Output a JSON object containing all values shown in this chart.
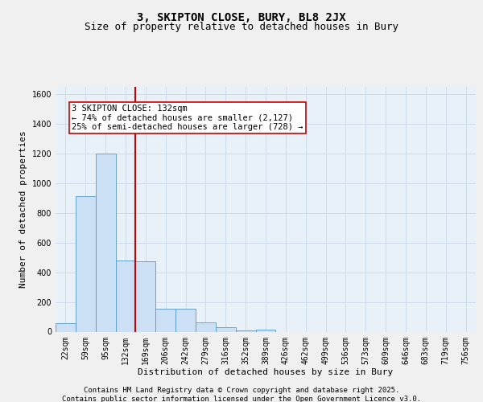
{
  "title1": "3, SKIPTON CLOSE, BURY, BL8 2JX",
  "title2": "Size of property relative to detached houses in Bury",
  "xlabel": "Distribution of detached houses by size in Bury",
  "ylabel": "Number of detached properties",
  "categories": [
    "22sqm",
    "59sqm",
    "95sqm",
    "132sqm",
    "169sqm",
    "206sqm",
    "242sqm",
    "279sqm",
    "316sqm",
    "352sqm",
    "389sqm",
    "426sqm",
    "462sqm",
    "499sqm",
    "536sqm",
    "573sqm",
    "609sqm",
    "646sqm",
    "683sqm",
    "719sqm",
    "756sqm"
  ],
  "values": [
    55,
    910,
    1200,
    480,
    475,
    155,
    155,
    60,
    30,
    10,
    15,
    0,
    0,
    0,
    0,
    0,
    0,
    0,
    0,
    0,
    0
  ],
  "bar_color": "#cce0f5",
  "bar_edge_color": "#5599cc",
  "vline_color": "#cc0000",
  "vline_index": 3,
  "annotation_text": "3 SKIPTON CLOSE: 132sqm\n← 74% of detached houses are smaller (2,127)\n25% of semi-detached houses are larger (728) →",
  "annotation_box_color": "#ffffff",
  "annotation_box_edge_color": "#cc0000",
  "ylim": [
    0,
    1650
  ],
  "yticks": [
    0,
    200,
    400,
    600,
    800,
    1000,
    1200,
    1400,
    1600
  ],
  "grid_color": "#c8d8e8",
  "bg_color": "#e8f0f8",
  "fig_bg_color": "#f0f0f0",
  "footer_line1": "Contains HM Land Registry data © Crown copyright and database right 2025.",
  "footer_line2": "Contains public sector information licensed under the Open Government Licence v3.0.",
  "title1_fontsize": 10,
  "title2_fontsize": 9,
  "xlabel_fontsize": 8,
  "ylabel_fontsize": 8,
  "tick_fontsize": 7,
  "annotation_fontsize": 7.5,
  "footer_fontsize": 6.5
}
